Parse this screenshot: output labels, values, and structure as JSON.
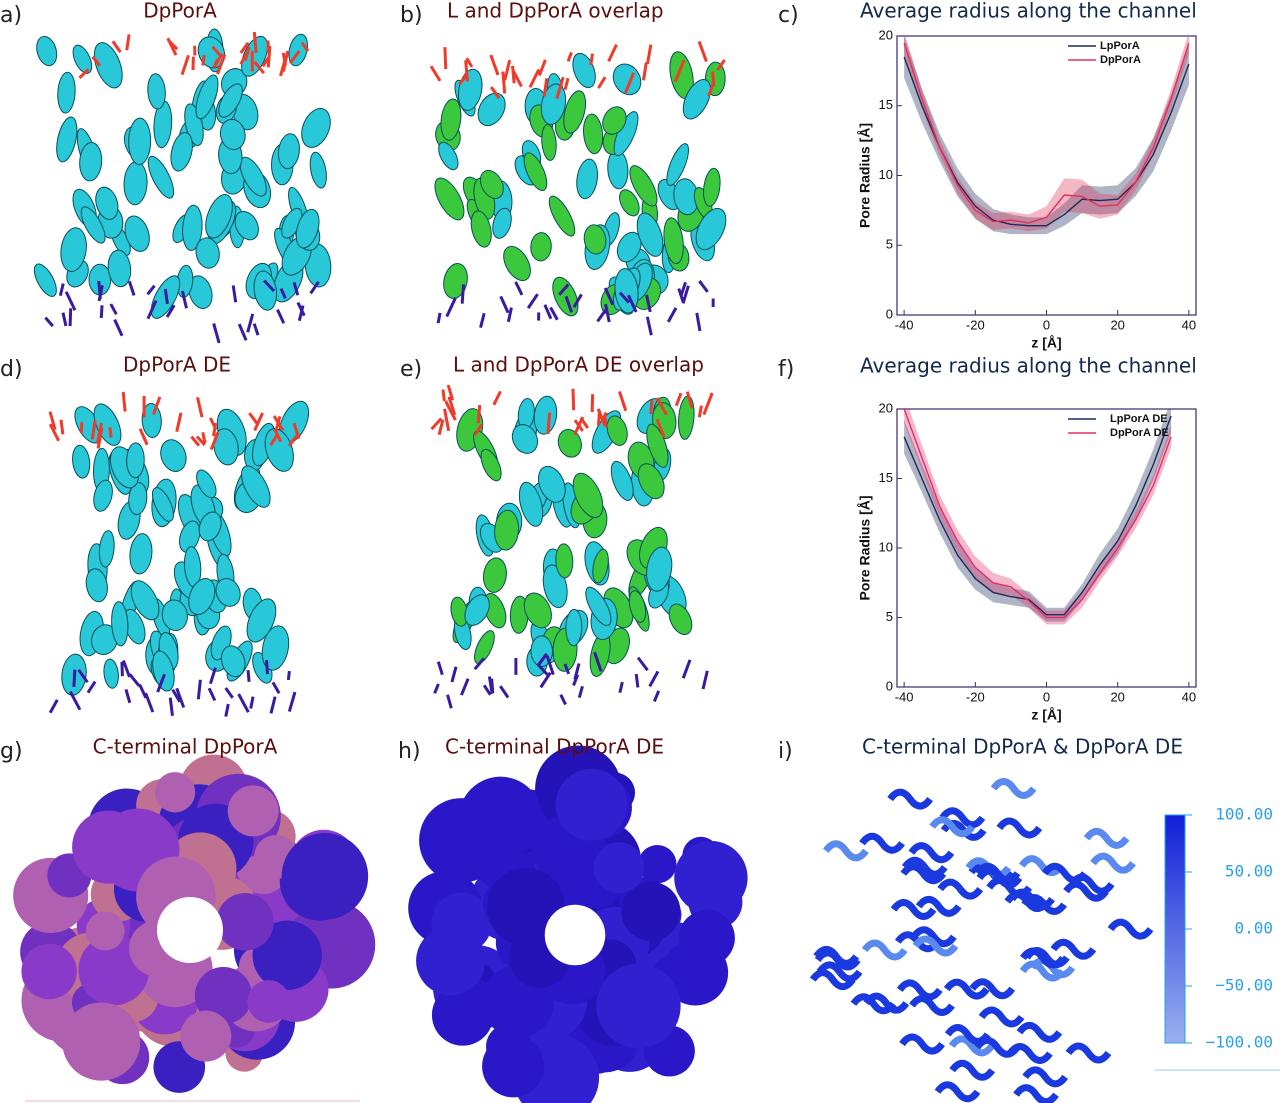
{
  "panels": {
    "a": {
      "label": "a)",
      "title": "DpPorA"
    },
    "b": {
      "label": "b)",
      "title": "L and DpPorA overlap"
    },
    "c": {
      "label": "c)"
    },
    "d": {
      "label": "d)",
      "title": "DpPorA DE"
    },
    "e": {
      "label": "e)",
      "title": "L and DpPorA DE overlap"
    },
    "f": {
      "label": "f)"
    },
    "g": {
      "label": "g)",
      "title": "C-terminal DpPorA"
    },
    "h": {
      "label": "h)",
      "title": "C-terminal DpPorA DE"
    },
    "i": {
      "label": "i)",
      "title": "C-terminal DpPorA & DpPorA DE"
    }
  },
  "colorbar": {
    "ticks": [
      {
        "value": 100,
        "label": "100.00"
      },
      {
        "value": 50,
        "label": "50.00"
      },
      {
        "value": 0,
        "label": "0.00"
      },
      {
        "value": -50,
        "label": "−50.00"
      },
      {
        "value": -100,
        "label": "−100.00"
      }
    ]
  },
  "chart_data": [
    {
      "type": "line",
      "title": "Average radius along the channel",
      "xlabel": "z [Å]",
      "ylabel": "Pore Radius [Å]",
      "x": [
        -40,
        -35,
        -30,
        -25,
        -20,
        -15,
        -10,
        -5,
        0,
        5,
        10,
        15,
        20,
        25,
        30,
        35,
        40
      ],
      "series": [
        {
          "name": "LpPorA",
          "color": "#1c2a5c",
          "values": [
            18.5,
            15,
            12,
            9.5,
            7.8,
            6.8,
            6.5,
            6.4,
            6.4,
            7.2,
            8.3,
            8.2,
            8.3,
            9.5,
            11.5,
            14.5,
            18
          ],
          "errors": [
            1.5,
            1.2,
            1,
            1,
            0.9,
            0.8,
            0.7,
            0.6,
            0.6,
            0.8,
            1,
            1,
            1,
            1,
            1.2,
            1.3,
            1.5
          ]
        },
        {
          "name": "DpPorA",
          "color": "#e0305a",
          "values": [
            19.5,
            15.5,
            12,
            9.3,
            7.5,
            6.7,
            6.8,
            6.6,
            7,
            8.6,
            8.5,
            7.8,
            7.9,
            9.5,
            12,
            15.5,
            19.5
          ],
          "errors": [
            0.8,
            0.7,
            0.6,
            0.6,
            0.6,
            0.6,
            0.6,
            0.6,
            0.8,
            1.2,
            1.2,
            0.9,
            0.7,
            0.6,
            0.6,
            0.7,
            0.8
          ]
        }
      ],
      "xlim": [
        -42,
        42
      ],
      "ylim": [
        0,
        20
      ],
      "xticks": [
        -40,
        -20,
        0,
        20,
        40
      ],
      "yticks": [
        0,
        5,
        10,
        15,
        20
      ],
      "legend": "upper right"
    },
    {
      "type": "line",
      "title": "Average radius along the channel",
      "xlabel": "z [Å]",
      "ylabel": "Pore Radius [Å]",
      "x": [
        -40,
        -35,
        -30,
        -25,
        -20,
        -15,
        -10,
        -5,
        0,
        5,
        10,
        15,
        20,
        25,
        30,
        35
      ],
      "series": [
        {
          "name": "LpPorA DE",
          "color": "#1c2a5c",
          "values": [
            18,
            15,
            12,
            9.5,
            7.8,
            6.8,
            6.5,
            6.3,
            5.2,
            5.2,
            6.8,
            8.8,
            10.5,
            13,
            16,
            19.5
          ],
          "errors": [
            1.2,
            1,
            0.9,
            0.9,
            0.8,
            0.7,
            0.6,
            0.6,
            0.5,
            0.5,
            0.6,
            0.8,
            0.9,
            1,
            1.1,
            1.2
          ]
        },
        {
          "name": "DpPorA DE",
          "color": "#e0306a",
          "values": [
            20,
            16.5,
            13,
            10.5,
            8.6,
            7.5,
            7.2,
            6.2,
            5,
            5,
            6.3,
            8.2,
            10,
            12,
            14.5,
            18
          ],
          "errors": [
            1,
            0.9,
            0.8,
            0.8,
            0.8,
            0.7,
            0.6,
            0.5,
            0.5,
            0.5,
            0.6,
            0.6,
            0.6,
            0.6,
            0.7,
            0.8
          ]
        }
      ],
      "xlim": [
        -42,
        42
      ],
      "ylim": [
        0,
        20
      ],
      "xticks": [
        -40,
        -20,
        0,
        20,
        40
      ],
      "yticks": [
        0,
        5,
        10,
        15,
        20
      ],
      "legend": "upper right"
    }
  ]
}
